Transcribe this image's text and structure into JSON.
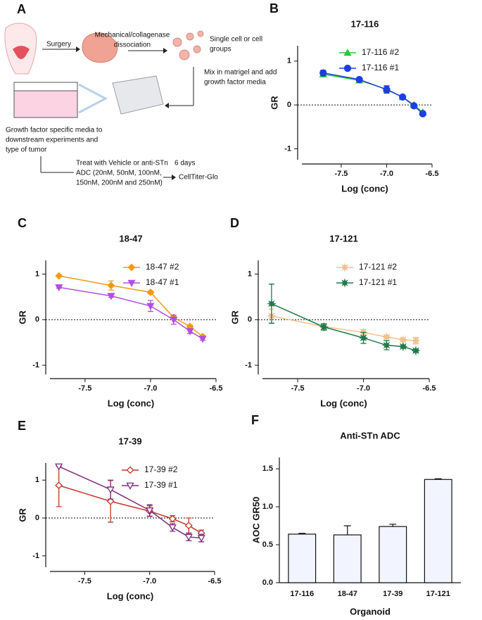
{
  "diagram": {
    "label": "A",
    "texts": [
      {
        "lines": [
          "Surgery"
        ]
      },
      {
        "lines": [
          "Mechanical/collagenase",
          "dissociation"
        ]
      },
      {
        "lines": [
          "Single cell or cell",
          "groups"
        ]
      },
      {
        "lines": [
          "Mix in matrigel and add",
          "growth factor media"
        ]
      },
      {
        "lines": [
          "Growth factor specific media to",
          "downstream experiments and",
          "type of tumor"
        ]
      },
      {
        "lines": [
          "Treat with Vehicle or anti-STn",
          "ADC (20nM, 50nM, 100nM,",
          "150nM, 200nM and 250nM)"
        ]
      },
      {
        "lines": [
          "6 days"
        ]
      },
      {
        "lines": [
          "CellTiter-Glo"
        ]
      }
    ]
  },
  "chart_data": [
    {
      "panel": "B",
      "type": "line",
      "title": "17-116",
      "xlabel": "Log (conc)",
      "ylabel": "GR",
      "x": [
        -7.699,
        -7.301,
        -7.0,
        -6.824,
        -6.699,
        -6.602
      ],
      "xlim": [
        -7.98,
        -6.5
      ],
      "xticks": [
        -7.5,
        {
          "value": -7,
          "label": "-7.0"
        },
        -6.5
      ],
      "ylim": [
        -1.25,
        1.35
      ],
      "yticks": [
        -1,
        0,
        1
      ],
      "hline": 0,
      "legend": "upper right",
      "series": [
        {
          "name": "17-116 #2",
          "color": "#2fc43a",
          "marker": "triangle",
          "filled": true,
          "values": [
            0.7,
            0.56,
            0.36,
            0.18,
            0.0,
            -0.17
          ],
          "errors": [
            0.06,
            0.04,
            0.08,
            0.02,
            0.02,
            0.03
          ]
        },
        {
          "name": "17-116 #1",
          "color": "#1d3fe0",
          "marker": "circle",
          "filled": true,
          "values": [
            0.73,
            0.58,
            0.35,
            0.18,
            -0.02,
            -0.2
          ],
          "errors": [
            0.06,
            0.03,
            0.08,
            0.02,
            0.02,
            0.03
          ]
        }
      ]
    },
    {
      "panel": "C",
      "type": "line",
      "title": "18-47",
      "xlabel": "Log (conc)",
      "ylabel": "GR",
      "x": [
        -7.699,
        -7.301,
        -7.0,
        -6.824,
        -6.699,
        -6.602
      ],
      "xlim": [
        -7.8,
        -6.5
      ],
      "xticks": [
        -7.5,
        {
          "value": -7,
          "label": "-7.0"
        },
        -6.5
      ],
      "ylim": [
        -1.2,
        1.3
      ],
      "yticks": [
        -1,
        0,
        1
      ],
      "hline": 0,
      "legend": "upper right",
      "series": [
        {
          "name": "18-47 #2",
          "color": "#f39a12",
          "marker": "diamond",
          "filled": true,
          "values": [
            0.96,
            0.75,
            0.6,
            0.05,
            -0.15,
            -0.37
          ],
          "errors": [
            0.02,
            0.1,
            0.03,
            0.03,
            0.03,
            0.03
          ]
        },
        {
          "name": "18-47 #1",
          "color": "#b34fe0",
          "marker": "triangle-down",
          "filled": true,
          "values": [
            0.71,
            0.52,
            0.3,
            0.0,
            -0.25,
            -0.42
          ],
          "errors": [
            0.02,
            0.03,
            0.12,
            0.1,
            0.05,
            0.03
          ]
        }
      ]
    },
    {
      "panel": "D",
      "type": "line",
      "title": "17-121",
      "xlabel": "Log (conc)",
      "ylabel": "GR",
      "x": [
        -7.699,
        -7.301,
        -7.0,
        -6.824,
        -6.699,
        -6.602
      ],
      "xlim": [
        -7.8,
        -6.5
      ],
      "xticks": [
        -7.5,
        {
          "value": -7,
          "label": "-7.0"
        },
        -6.5
      ],
      "ylim": [
        -1.2,
        1.3
      ],
      "yticks": [
        -1,
        0,
        1
      ],
      "hline": 0,
      "legend": "upper right",
      "series": [
        {
          "name": "17-121 #2",
          "color": "#f3c08c",
          "marker": "star",
          "filled": true,
          "values": [
            0.08,
            -0.15,
            -0.28,
            -0.38,
            -0.44,
            -0.46
          ],
          "errors": [
            0.15,
            0.06,
            0.06,
            0.03,
            0.03,
            0.07
          ]
        },
        {
          "name": "17-121 #1",
          "color": "#1e7a4a",
          "marker": "star",
          "filled": true,
          "values": [
            0.35,
            -0.16,
            -0.4,
            -0.56,
            -0.59,
            -0.68
          ],
          "errors": [
            0.43,
            0.07,
            0.12,
            0.1,
            0.03,
            0.03
          ]
        }
      ]
    },
    {
      "panel": "E",
      "type": "line",
      "title": "17-39",
      "xlabel": "Log (conc)",
      "ylabel": "GR",
      "x": [
        -7.699,
        -7.301,
        -7.0,
        -6.824,
        -6.699,
        -6.602
      ],
      "xlim": [
        -7.8,
        -6.5
      ],
      "xticks": [
        -7.5,
        {
          "value": -7,
          "label": "-7.0"
        },
        -6.5
      ],
      "ylim": [
        -1.3,
        1.45
      ],
      "yticks": [
        -1,
        0,
        1
      ],
      "hline": 0,
      "legend": "upper right",
      "series": [
        {
          "name": "17-39 #2",
          "color": "#c0392b",
          "marker": "diamond",
          "filled": false,
          "values": [
            0.86,
            0.44,
            0.18,
            -0.02,
            -0.2,
            -0.4
          ],
          "errors": [
            0.56,
            0.55,
            0.14,
            0.08,
            0.2,
            0.08
          ]
        },
        {
          "name": "17-39 #1",
          "color": "#7b2c7a",
          "marker": "triangle-down",
          "filled": false,
          "values": [
            1.36,
            0.75,
            0.2,
            -0.25,
            -0.5,
            -0.53
          ],
          "errors": [
            0.0,
            0.25,
            0.15,
            0.1,
            0.1,
            0.1
          ]
        }
      ]
    },
    {
      "panel": "F",
      "type": "bar",
      "title": "Anti-STn ADC",
      "xlabel": "Organoid",
      "ylabel": "AOC GR50",
      "categories": [
        "17-116",
        "18-47",
        "17-39",
        "17-121"
      ],
      "values": [
        0.64,
        0.63,
        0.74,
        1.36
      ],
      "errors": [
        0.01,
        0.12,
        0.03,
        0.01
      ],
      "color": "#f2f4ff",
      "ylim": [
        0,
        1.65
      ],
      "yticks": [
        {
          "value": 0,
          "label": "0.0"
        },
        0.5,
        {
          "value": 1,
          "label": "1.0"
        },
        1.5
      ]
    }
  ]
}
